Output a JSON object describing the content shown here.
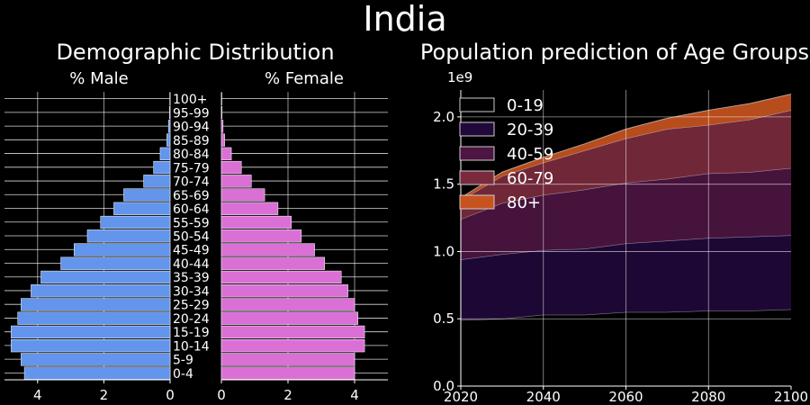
{
  "title": "India",
  "chart_data": [
    {
      "type": "bar",
      "orientation": "horizontal-pyramid",
      "title": "Demographic Distribution",
      "left_label": "% Male",
      "right_label": "% Female",
      "categories": [
        "0-4",
        "5-9",
        "10-14",
        "15-19",
        "20-24",
        "25-29",
        "30-34",
        "35-39",
        "40-44",
        "45-49",
        "50-54",
        "55-59",
        "60-64",
        "65-69",
        "70-74",
        "75-79",
        "80-84",
        "85-89",
        "90-94",
        "95-99",
        "100+"
      ],
      "series": [
        {
          "name": "% Male",
          "color": "#6495ed",
          "values": [
            4.4,
            4.5,
            4.8,
            4.8,
            4.6,
            4.5,
            4.2,
            3.9,
            3.3,
            2.9,
            2.5,
            2.1,
            1.7,
            1.4,
            0.8,
            0.5,
            0.3,
            0.1,
            0.05,
            0.02,
            0.01
          ]
        },
        {
          "name": "% Female",
          "color": "#da70d6",
          "values": [
            4.0,
            4.0,
            4.3,
            4.3,
            4.1,
            4.0,
            3.8,
            3.6,
            3.1,
            2.8,
            2.4,
            2.1,
            1.7,
            1.3,
            0.9,
            0.6,
            0.3,
            0.1,
            0.05,
            0.02,
            0.01
          ]
        }
      ],
      "xlim_male": [
        5.0,
        0
      ],
      "xlim_female": [
        0,
        5.0
      ],
      "xticks": [
        "4",
        "2",
        "0"
      ],
      "xticks_female": [
        "0",
        "2",
        "4"
      ],
      "grid": true
    },
    {
      "type": "area",
      "stacked": true,
      "title": "Population prediction of Age Groups",
      "y_multiplier_label": "1e9",
      "x": [
        2020,
        2030,
        2040,
        2050,
        2060,
        2070,
        2080,
        2090,
        2100
      ],
      "xlim": [
        2020,
        2100
      ],
      "ylim": [
        0,
        2.2
      ],
      "yticks": [
        "0.0",
        "0.5",
        "1.0",
        "1.5",
        "2.0"
      ],
      "xticks": [
        "2020",
        "2040",
        "2060",
        "2080",
        "2100"
      ],
      "legend_position": "upper-left",
      "grid": true,
      "series": [
        {
          "name": "0-19",
          "color": "#000000",
          "values": [
            0.49,
            0.5,
            0.53,
            0.53,
            0.55,
            0.55,
            0.56,
            0.56,
            0.57
          ]
        },
        {
          "name": "20-39",
          "color": "#20093a",
          "values": [
            0.45,
            0.48,
            0.48,
            0.49,
            0.51,
            0.53,
            0.54,
            0.55,
            0.55
          ]
        },
        {
          "name": "40-59",
          "color": "#4c1542",
          "values": [
            0.3,
            0.38,
            0.41,
            0.44,
            0.45,
            0.46,
            0.48,
            0.48,
            0.5
          ]
        },
        {
          "name": "60-79",
          "color": "#7a2a3c",
          "values": [
            0.14,
            0.2,
            0.24,
            0.29,
            0.33,
            0.37,
            0.36,
            0.39,
            0.43
          ]
        },
        {
          "name": "80+",
          "color": "#c7531f",
          "values": [
            0.02,
            0.03,
            0.04,
            0.05,
            0.07,
            0.08,
            0.11,
            0.12,
            0.12
          ]
        }
      ]
    }
  ]
}
